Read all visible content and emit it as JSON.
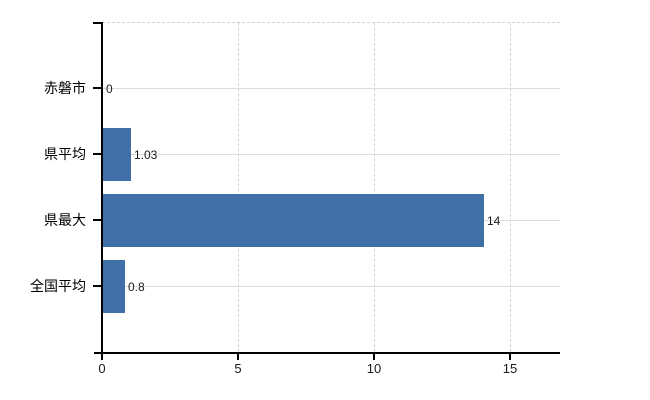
{
  "chart_data": {
    "type": "bar",
    "orientation": "horizontal",
    "title": "",
    "xlabel": "",
    "ylabel": "",
    "categories": [
      "赤磐市",
      "県平均",
      "県最大",
      "全国平均"
    ],
    "values": [
      0,
      1.03,
      14,
      0.8
    ],
    "value_labels": [
      "0",
      "1.03",
      "14",
      "0.8"
    ],
    "x_ticks": [
      0,
      5,
      10,
      15
    ],
    "x_tick_labels": [
      "0",
      "5",
      "10",
      "15"
    ],
    "xlim": [
      0,
      16.8
    ],
    "grid": true,
    "legend": false,
    "bar_color": "#4170a8",
    "horizontal_grid_color": "#dcdcdc",
    "vertical_grid_color": "#d6d0d6",
    "axis_color": "#000000",
    "text_color": "#000000",
    "background_color": "#ffffff"
  }
}
